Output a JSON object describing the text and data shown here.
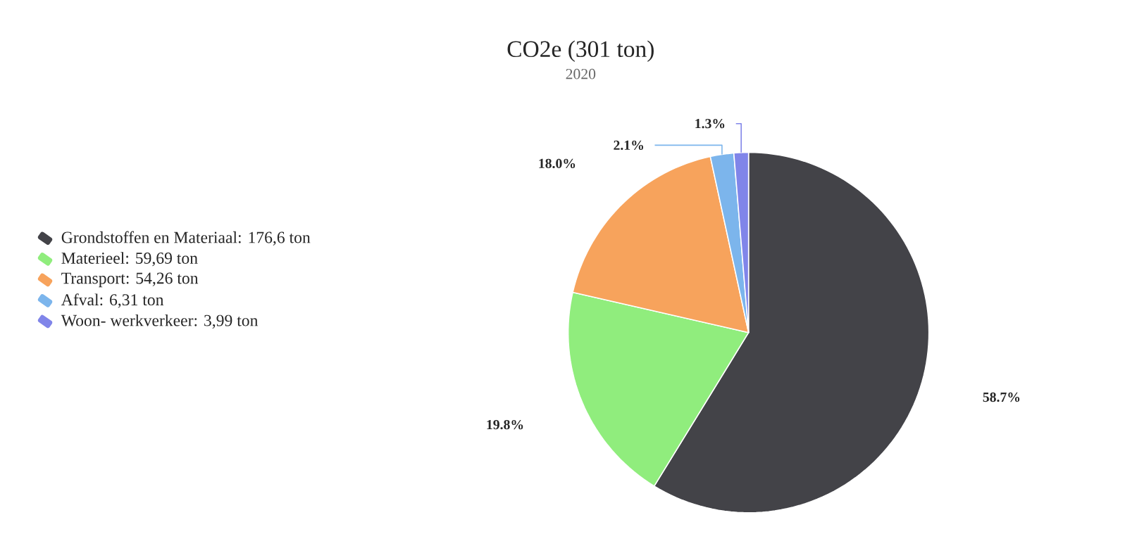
{
  "chart_data": {
    "type": "pie",
    "title": "CO2e (301 ton)",
    "subtitle": "2020",
    "categories": [
      "Grondstoffen en Materiaal: 176,6 ton",
      "Materieel: 59,69 ton",
      "Transport: 54,26 ton",
      "Afval: 6,31 ton",
      "Woon- werkverkeer: 3,99 ton"
    ],
    "values": [
      58.7,
      19.8,
      18.0,
      2.1,
      1.3
    ],
    "value_labels": [
      "58.7%",
      "19.8%",
      "18.0%",
      "2.1%",
      "1.3%"
    ],
    "colors": [
      "#434348",
      "#90ed7d",
      "#f7a35c",
      "#7cb5ec",
      "#8085e9"
    ],
    "legend": "left"
  }
}
